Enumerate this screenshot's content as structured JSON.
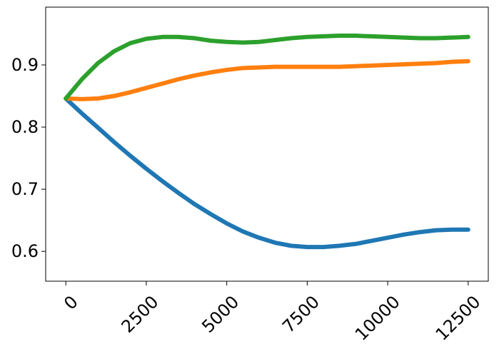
{
  "chart_data": {
    "type": "line",
    "title": "",
    "xlabel": "",
    "ylabel": "",
    "xlim": [
      -625,
      13125
    ],
    "ylim": [
      0.552,
      0.993
    ],
    "grid": false,
    "legend": "none",
    "x_ticks": [
      0,
      2500,
      5000,
      7500,
      10000,
      12500
    ],
    "x_tick_labels": [
      "0",
      "2500",
      "5000",
      "7500",
      "10000",
      "12500"
    ],
    "y_ticks": [
      0.6,
      0.7,
      0.8,
      0.9
    ],
    "y_tick_labels": [
      "0.6",
      "0.7",
      "0.8",
      "0.9"
    ],
    "x": [
      0,
      500,
      1000,
      1500,
      2000,
      2500,
      3000,
      3500,
      4000,
      4500,
      5000,
      5500,
      6000,
      6500,
      7000,
      7500,
      8000,
      8500,
      9000,
      9500,
      10000,
      10500,
      11000,
      11500,
      12000,
      12500
    ],
    "series": [
      {
        "color": "#1f77b4",
        "values": [
          0.846,
          0.822,
          0.799,
          0.776,
          0.754,
          0.733,
          0.713,
          0.694,
          0.676,
          0.66,
          0.645,
          0.632,
          0.622,
          0.614,
          0.609,
          0.607,
          0.607,
          0.609,
          0.612,
          0.617,
          0.622,
          0.627,
          0.631,
          0.634,
          0.635,
          0.635
        ]
      },
      {
        "color": "#ff7f0e",
        "values": [
          0.846,
          0.845,
          0.846,
          0.85,
          0.856,
          0.863,
          0.87,
          0.877,
          0.883,
          0.888,
          0.892,
          0.895,
          0.896,
          0.897,
          0.897,
          0.897,
          0.897,
          0.897,
          0.898,
          0.899,
          0.9,
          0.901,
          0.902,
          0.903,
          0.905,
          0.906
        ]
      },
      {
        "color": "#2ca02c",
        "values": [
          0.846,
          0.877,
          0.903,
          0.922,
          0.935,
          0.942,
          0.945,
          0.945,
          0.943,
          0.939,
          0.937,
          0.936,
          0.937,
          0.94,
          0.943,
          0.945,
          0.946,
          0.947,
          0.947,
          0.946,
          0.945,
          0.944,
          0.943,
          0.943,
          0.944,
          0.945
        ]
      }
    ]
  }
}
